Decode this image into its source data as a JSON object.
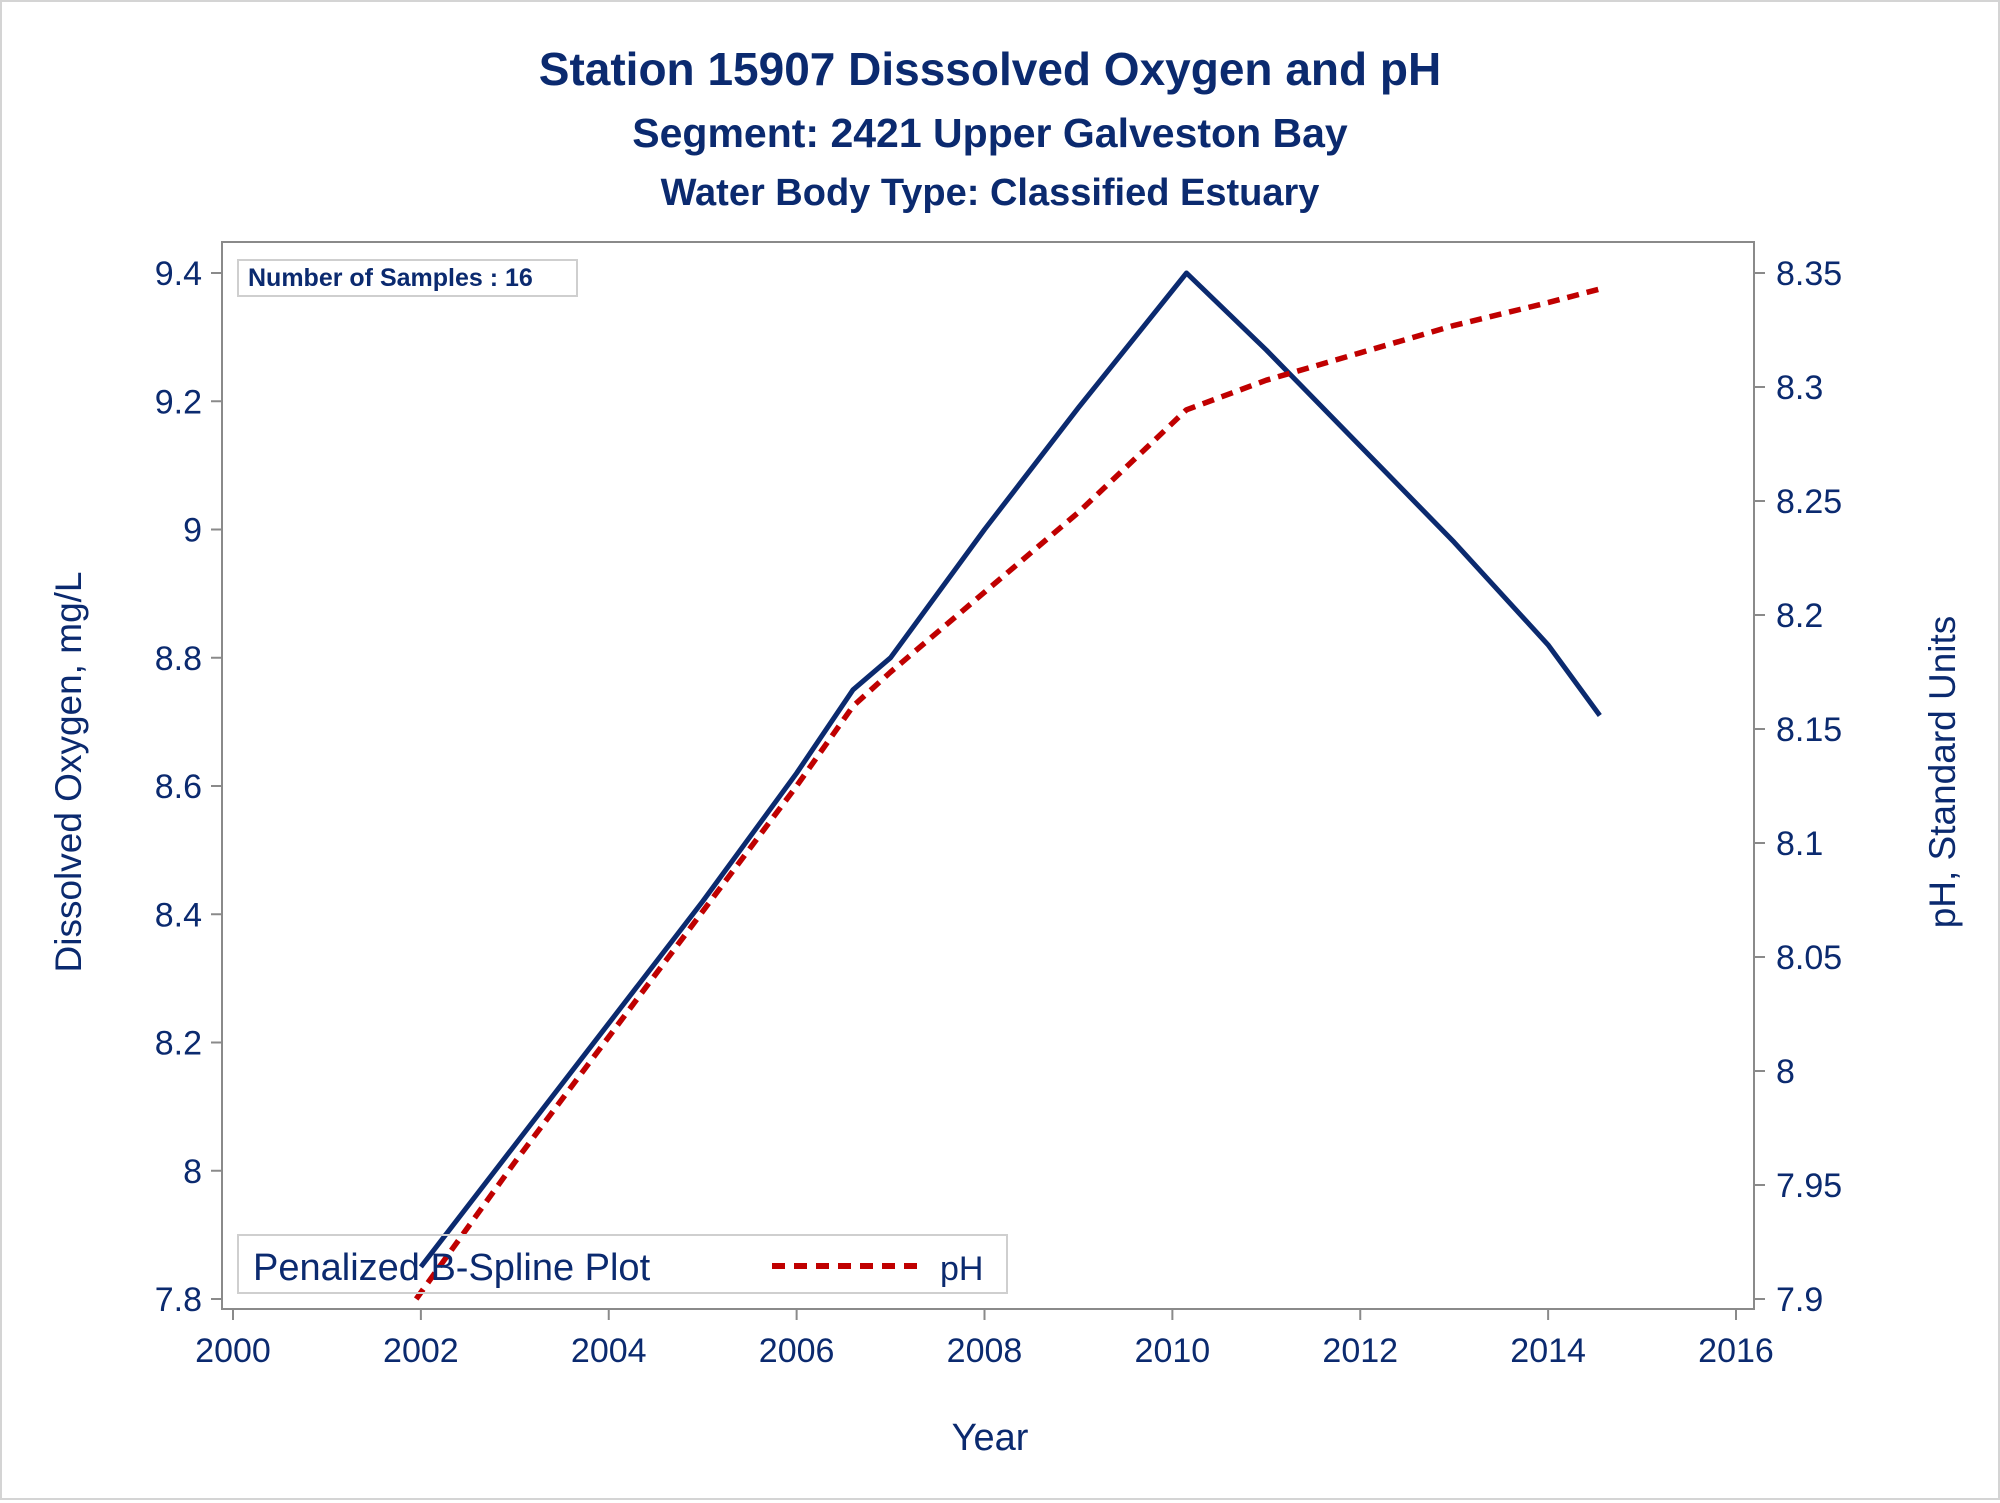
{
  "colors": {
    "text": "#0b2a6f",
    "do_line": "#0b2a6f",
    "ph_line": "#c00000",
    "axis": "#8a8a8a",
    "frame": "#d4d4d4"
  },
  "chart_data": {
    "type": "line",
    "title": "Station 15907   Disssolved Oxygen and pH",
    "subtitle": "Segment: 2421  Upper Galveston Bay",
    "subtitle2": "Water Body Type: Classified Estuary",
    "xlabel": "Year",
    "ylabel": "Dissolved Oxygen, mg/L",
    "y2label": "pH, Standard Units",
    "xlim": [
      2000,
      2016
    ],
    "ylim": [
      7.8,
      9.4
    ],
    "y2lim": [
      7.9,
      8.35
    ],
    "xticks": [
      2000,
      2002,
      2004,
      2006,
      2008,
      2010,
      2012,
      2014,
      2016
    ],
    "yticks": [
      7.8,
      8,
      8.2,
      8.4,
      8.6,
      8.8,
      9,
      9.2,
      9.4
    ],
    "y2ticks": [
      7.9,
      7.95,
      8,
      8.05,
      8.1,
      8.15,
      8.2,
      8.25,
      8.3,
      8.35
    ],
    "inset_text": "Number of Samples : 16",
    "legend": {
      "title": "Penalized B-Spline Plot",
      "entries": [
        "pH"
      ],
      "position": "bottom-left"
    },
    "series": [
      {
        "axis": "left",
        "style": "solid",
        "x": [
          2002.0,
          2003.0,
          2004.0,
          2005.0,
          2006.0,
          2006.6,
          2007.0,
          2008.0,
          2009.0,
          2010.15,
          2011.0,
          2012.0,
          2013.0,
          2014.0,
          2014.55
        ],
        "y": [
          7.85,
          8.04,
          8.23,
          8.42,
          8.62,
          8.75,
          8.8,
          9.0,
          9.19,
          9.4,
          9.28,
          9.13,
          8.98,
          8.82,
          8.71
        ]
      },
      {
        "name": "pH",
        "axis": "right",
        "style": "dashed",
        "x": [
          2001.95,
          2003.0,
          2004.0,
          2005.0,
          2006.0,
          2006.6,
          2007.0,
          2008.0,
          2009.0,
          2010.15,
          2011.0,
          2012.0,
          2013.0,
          2014.0,
          2014.55
        ],
        "y": [
          7.9,
          7.96,
          8.015,
          8.07,
          8.125,
          8.16,
          8.175,
          8.21,
          8.245,
          8.29,
          8.303,
          8.315,
          8.327,
          8.337,
          8.343
        ]
      }
    ]
  }
}
